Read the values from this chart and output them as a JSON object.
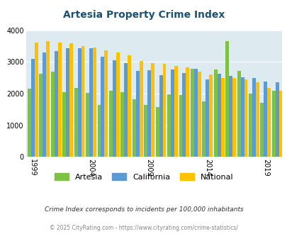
{
  "title": "Artesia Property Crime Index",
  "subtitle": "Crime Index corresponds to incidents per 100,000 inhabitants",
  "footer": "© 2025 CityRating.com - https://www.cityrating.com/crime-statistics/",
  "years": [
    1999,
    2000,
    2001,
    2002,
    2003,
    2004,
    2005,
    2006,
    2007,
    2008,
    2009,
    2010,
    2011,
    2012,
    2013,
    2014,
    2015,
    2016,
    2017,
    2018,
    2019,
    2020
  ],
  "artesia": [
    2150,
    2620,
    2700,
    2040,
    2180,
    2030,
    1650,
    2100,
    2040,
    1820,
    1650,
    1580,
    1970,
    1960,
    2780,
    1760,
    2760,
    3650,
    2720,
    2000,
    1700,
    2100
  ],
  "california": [
    3100,
    3300,
    3340,
    3440,
    3440,
    3440,
    3160,
    3050,
    2960,
    2720,
    2750,
    2580,
    2760,
    2650,
    2780,
    2450,
    2620,
    2560,
    2520,
    2500,
    2380,
    2360
  ],
  "national": [
    3620,
    3660,
    3620,
    3590,
    3500,
    3460,
    3370,
    3300,
    3220,
    3040,
    2960,
    2940,
    2870,
    2840,
    2700,
    2600,
    2490,
    2490,
    2460,
    2360,
    2180,
    2090
  ],
  "artesia_color": "#7dc242",
  "california_color": "#5b9bd5",
  "national_color": "#ffc000",
  "bg_color": "#ddeaf0",
  "ylim": [
    0,
    4000
  ],
  "yticks": [
    0,
    1000,
    2000,
    3000,
    4000
  ],
  "xtick_years": [
    1999,
    2004,
    2009,
    2014,
    2019
  ],
  "title_color": "#1a5276",
  "subtitle_color": "#333333",
  "footer_color": "#888888"
}
